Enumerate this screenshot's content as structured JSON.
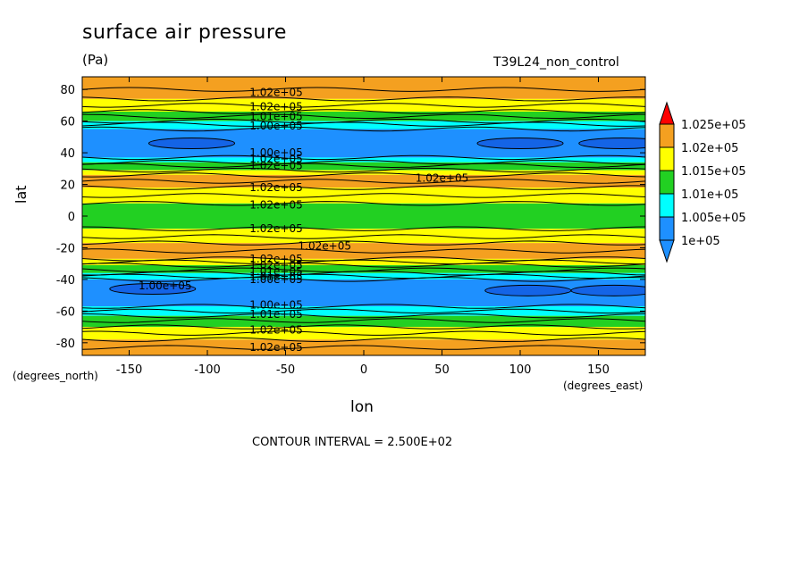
{
  "chart_data": {
    "type": "contour",
    "title": "surface air pressure",
    "units": "(Pa)",
    "run_label": "T39L24_non_control",
    "xlabel": "lon",
    "xunits": "(degrees_east)",
    "ylabel": "lat",
    "yunits": "(degrees_north)",
    "xlim": [
      -180,
      180
    ],
    "ylim": [
      -88,
      88
    ],
    "xticks": [
      -150,
      -100,
      -50,
      0,
      50,
      100,
      150
    ],
    "yticks": [
      -80,
      -60,
      -40,
      -20,
      0,
      20,
      40,
      60,
      80
    ],
    "contour_interval_text": "CONTOUR INTERVAL = 2.500E+02",
    "legend": {
      "levels": [
        "1.025e+05",
        "1.02e+05",
        "1.015e+05",
        "1.01e+05",
        "1.005e+05",
        "1e+05"
      ],
      "colors": [
        "#f4a020",
        "#ffff00",
        "#22d022",
        "#00ffff",
        "#1e90ff"
      ],
      "over_color": "#ff0000",
      "under_color": "#1e90ff"
    },
    "bands": [
      {
        "lat0": 74,
        "lat1": 88,
        "color": "#f4a020"
      },
      {
        "lat0": 66,
        "lat1": 74,
        "color": "#ffff00"
      },
      {
        "lat0": 60,
        "lat1": 66,
        "color": "#22d022"
      },
      {
        "lat0": 55,
        "lat1": 60,
        "color": "#00ffff"
      },
      {
        "lat0": 37,
        "lat1": 55,
        "color": "#1e90ff"
      },
      {
        "lat0": 34,
        "lat1": 37,
        "color": "#00ffff"
      },
      {
        "lat0": 29,
        "lat1": 34,
        "color": "#22d022"
      },
      {
        "lat0": 26,
        "lat1": 29,
        "color": "#ffff00"
      },
      {
        "lat0": 18,
        "lat1": 26,
        "color": "#f4a020"
      },
      {
        "lat0": 8,
        "lat1": 18,
        "color": "#ffff00"
      },
      {
        "lat0": -8,
        "lat1": 8,
        "color": "#22d022"
      },
      {
        "lat0": -17,
        "lat1": -8,
        "color": "#ffff00"
      },
      {
        "lat0": -27,
        "lat1": -17,
        "color": "#f4a020"
      },
      {
        "lat0": -31,
        "lat1": -27,
        "color": "#ffff00"
      },
      {
        "lat0": -36,
        "lat1": -31,
        "color": "#22d022"
      },
      {
        "lat0": -40,
        "lat1": -36,
        "color": "#00ffff"
      },
      {
        "lat0": -57,
        "lat1": -40,
        "color": "#1e90ff"
      },
      {
        "lat0": -63,
        "lat1": -57,
        "color": "#00ffff"
      },
      {
        "lat0": -70,
        "lat1": -63,
        "color": "#22d022"
      },
      {
        "lat0": -78,
        "lat1": -70,
        "color": "#ffff00"
      },
      {
        "lat0": -88,
        "lat1": -78,
        "color": "#f4a020"
      }
    ],
    "contour_lines_lat": [
      80,
      74,
      70,
      66,
      63,
      60,
      58,
      55,
      37,
      34,
      32,
      29,
      26,
      22,
      18,
      13,
      8,
      -8,
      -13,
      -17,
      -22,
      -27,
      -29,
      -31,
      -34,
      -36,
      -38,
      -40,
      -57,
      -60,
      -63,
      -66,
      -70,
      -74,
      -78,
      -83
    ],
    "lows": [
      {
        "lon": -110,
        "lat": 46,
        "color": "#1464e6"
      },
      {
        "lon": 100,
        "lat": 46,
        "color": "#1464e6"
      },
      {
        "lon": 165,
        "lat": 46,
        "color": "#1464e6"
      },
      {
        "lon": -135,
        "lat": -46,
        "color": "#1464e6"
      },
      {
        "lon": 105,
        "lat": -47,
        "color": "#1464e6"
      },
      {
        "lon": 160,
        "lat": -47,
        "color": "#1464e6"
      }
    ],
    "contour_labels": [
      {
        "lon": -56,
        "lat": 78,
        "text": "1.02e+05"
      },
      {
        "lon": -56,
        "lat": 69,
        "text": "1.02e+05"
      },
      {
        "lon": -56,
        "lat": 63,
        "text": "1.01e+05"
      },
      {
        "lon": -56,
        "lat": 57,
        "text": "1.00e+05"
      },
      {
        "lon": -56,
        "lat": 40,
        "text": "1.00e+05"
      },
      {
        "lon": -56,
        "lat": 36,
        "text": "1.02e+05"
      },
      {
        "lon": -56,
        "lat": 32,
        "text": "1.02e+05"
      },
      {
        "lon": 50,
        "lat": 24,
        "text": "1.02e+05"
      },
      {
        "lon": -56,
        "lat": 18,
        "text": "1.02e+05"
      },
      {
        "lon": -56,
        "lat": 7,
        "text": "1.02e+05"
      },
      {
        "lon": -56,
        "lat": -8,
        "text": "1.02e+05"
      },
      {
        "lon": -25,
        "lat": -19,
        "text": "1.02e+05"
      },
      {
        "lon": -56,
        "lat": -27,
        "text": "1.02e+05"
      },
      {
        "lon": -56,
        "lat": -31,
        "text": "1.02e+05"
      },
      {
        "lon": -56,
        "lat": -35,
        "text": "1.01e+05"
      },
      {
        "lon": -56,
        "lat": -38,
        "text": "1.01e+05"
      },
      {
        "lon": -56,
        "lat": -40,
        "text": "1.00e+05"
      },
      {
        "lon": -127,
        "lat": -44,
        "text": "1.00e+05"
      },
      {
        "lon": -56,
        "lat": -56,
        "text": "1.00e+05"
      },
      {
        "lon": -56,
        "lat": -62,
        "text": "1.01e+05"
      },
      {
        "lon": -56,
        "lat": -72,
        "text": "1.02e+05"
      },
      {
        "lon": -56,
        "lat": -83,
        "text": "1.02e+05"
      }
    ]
  }
}
